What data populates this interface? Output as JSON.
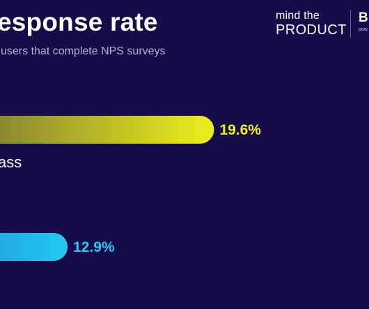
{
  "header": {
    "title": "esponse rate",
    "subtitle": "users that complete NPS surveys"
  },
  "brand": {
    "line1": "mind the",
    "line2": "PRODUCT",
    "partner": "B",
    "partner_small": "pow"
  },
  "colors": {
    "background": "#170c4a",
    "series1_start": "#2c2445",
    "series1_end": "#ecef1c",
    "series1_label": "#eef21a",
    "series2_start": "#2f4aa8",
    "series2_end": "#22c9f3",
    "series2_label": "#24c8f3"
  },
  "chart_data": {
    "type": "bar",
    "orientation": "horizontal",
    "title": "esponse rate",
    "subtitle": "users that complete NPS surveys",
    "categories": [
      "ass",
      ""
    ],
    "values": [
      19.6,
      12.9
    ],
    "value_labels": [
      "19.6%",
      "12.9%"
    ],
    "unit": "%",
    "grid": false
  }
}
